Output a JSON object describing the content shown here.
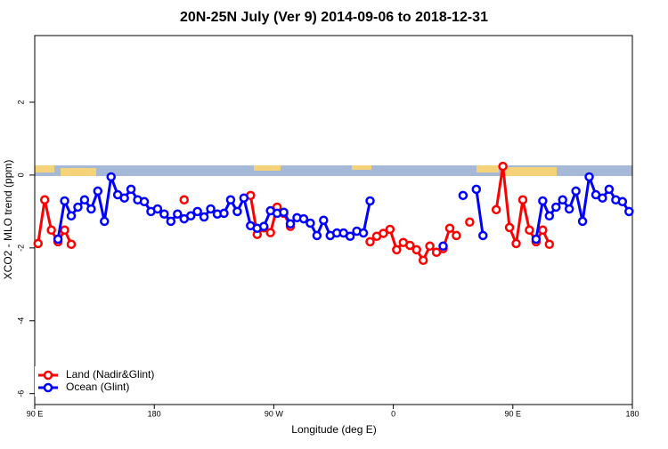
{
  "chart_data": {
    "type": "line",
    "title": "20N-25N July (Ver 9)   2014-09-06 to 2018-12-31",
    "xlabel": "Longitude (deg E)",
    "ylabel": "XCO2 - MLO trend (ppm)",
    "xlim": [
      90,
      540
    ],
    "ylim": [
      -6.3,
      3.83
    ],
    "xticks": [
      {
        "value": 90,
        "label": "90 E"
      },
      180,
      {
        "value": 270,
        "label": "90 W"
      },
      {
        "value": 360,
        "label": "0"
      },
      {
        "value": 450,
        "label": "90 E"
      },
      {
        "value": 540,
        "label": "180"
      }
    ],
    "yticks": [
      -6,
      -4,
      -2,
      0,
      2
    ],
    "legend": "bottom-left",
    "x": [
      92.5,
      97.5,
      102.5,
      107.5,
      112.5,
      117.5,
      122.5,
      127.5,
      132.5,
      137.5,
      142.5,
      147.5,
      152.5,
      157.5,
      162.5,
      167.5,
      172.5,
      177.5,
      182.5,
      187.5,
      192.5,
      197.5,
      202.5,
      207.5,
      212.5,
      217.5,
      222.5,
      227.5,
      232.5,
      237.5,
      242.5,
      247.5,
      252.5,
      257.5,
      262.5,
      267.5,
      272.5,
      277.5,
      282.5,
      287.5,
      292.5,
      297.5,
      302.5,
      307.5,
      312.5,
      317.5,
      322.5,
      327.5,
      332.5,
      337.5,
      342.5,
      347.5,
      352.5,
      357.5,
      362.5,
      367.5,
      372.5,
      377.5,
      382.5,
      387.5,
      392.5,
      397.5,
      402.5,
      407.5,
      412.5,
      417.5,
      422.5,
      427.5,
      432.5,
      437.5,
      442.5,
      447.5,
      452.5,
      457.5,
      462.5,
      467.5,
      472.5,
      477.5,
      482.5,
      487.5,
      492.5,
      497.5,
      502.5,
      507.5,
      512.5,
      517.5,
      522.5,
      527.5,
      532.5,
      537.5
    ],
    "series": [
      {
        "name": "Land (Nadir&Glint)",
        "color": "#ff0000",
        "values": [
          -1.88,
          -0.68,
          -1.51,
          -1.83,
          -1.51,
          -1.9,
          null,
          null,
          null,
          null,
          null,
          null,
          null,
          null,
          null,
          null,
          null,
          null,
          null,
          null,
          null,
          null,
          -0.68,
          null,
          null,
          null,
          null,
          null,
          null,
          null,
          null,
          null,
          -0.56,
          -1.63,
          -1.45,
          -1.58,
          -0.88,
          -1.05,
          -1.41,
          null,
          null,
          null,
          null,
          null,
          null,
          null,
          null,
          null,
          null,
          null,
          -1.83,
          -1.68,
          -1.6,
          -1.49,
          -2.05,
          -1.85,
          -1.93,
          -2.05,
          -2.34,
          -1.95,
          -2.12,
          -2.02,
          -1.46,
          -1.66,
          null,
          -1.29,
          null,
          null,
          null,
          -0.95,
          0.24,
          -1.44,
          -1.88,
          -0.68,
          -1.51,
          -1.83,
          -1.51,
          -1.9,
          null,
          null,
          null,
          null,
          null,
          null,
          null,
          null,
          null,
          null,
          null,
          null
        ]
      },
      {
        "name": "Ocean (Glint)",
        "color": "#0000ff",
        "values": [
          null,
          null,
          null,
          -1.76,
          -0.71,
          -1.12,
          -0.88,
          -0.68,
          -0.93,
          -0.44,
          -1.27,
          -0.05,
          -0.54,
          -0.63,
          -0.39,
          -0.68,
          -0.73,
          -1.0,
          -0.93,
          -1.07,
          -1.27,
          -1.07,
          -1.2,
          -1.12,
          -1.0,
          -1.15,
          -0.93,
          -1.07,
          -1.05,
          -0.68,
          -1.0,
          -0.63,
          -1.39,
          -1.46,
          -1.41,
          -0.98,
          -1.05,
          -1.02,
          -1.34,
          -1.17,
          -1.2,
          -1.32,
          -1.66,
          -1.24,
          -1.66,
          -1.59,
          -1.59,
          -1.68,
          -1.54,
          -1.59,
          -0.71,
          null,
          null,
          null,
          null,
          null,
          null,
          null,
          null,
          null,
          null,
          -1.95,
          null,
          null,
          -0.56,
          null,
          -0.39,
          -1.66,
          null,
          null,
          null,
          null,
          null,
          null,
          null,
          -1.76,
          -0.71,
          -1.12,
          -0.88,
          -0.68,
          -0.93,
          -0.44,
          -1.27,
          -0.05,
          -0.54,
          -0.63,
          -0.39,
          -0.68,
          -0.73,
          -1.0
        ]
      }
    ]
  }
}
